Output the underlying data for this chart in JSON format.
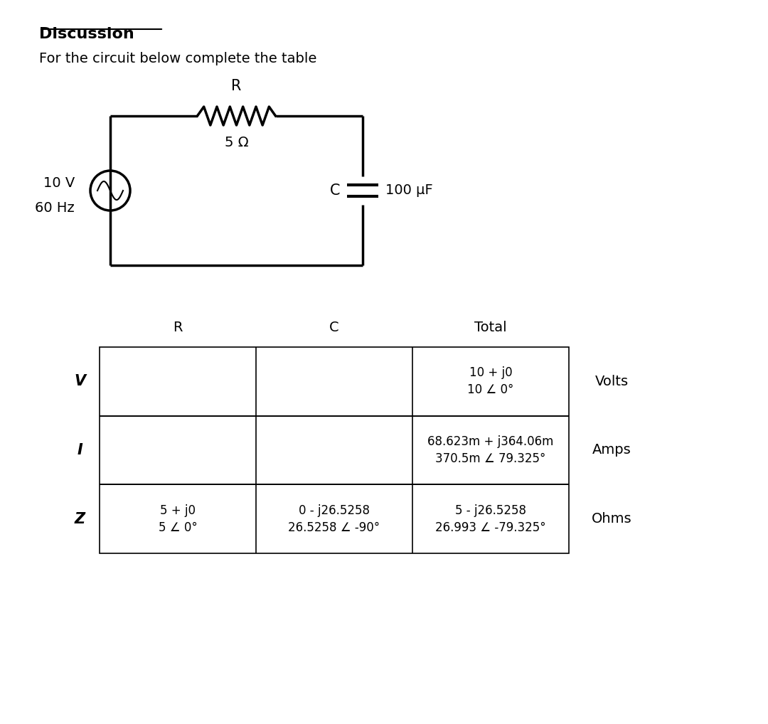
{
  "title": "Discussion",
  "subtitle": "For the circuit below complete the table",
  "bg_color": "#ffffff",
  "font_family": "DejaVu Sans",
  "circuit": {
    "source_label_top": "10 V",
    "source_label_bot": "60 Hz",
    "resistor_label_top": "R",
    "resistor_label_bot": "5 Ω",
    "capacitor_label_left": "C",
    "capacitor_label_right": "100 μF"
  },
  "table": {
    "col_headers": [
      "R",
      "C",
      "Total"
    ],
    "row_headers": [
      "V",
      "I",
      "Z"
    ],
    "row_units": [
      "Volts",
      "Amps",
      "Ohms"
    ],
    "cells": [
      [
        "",
        "",
        "10 + j0\n10 ∠ 0°"
      ],
      [
        "",
        "",
        "68.623m + j364.06m\n370.5m ∠ 79.325°"
      ],
      [
        "5 + j0\n5 ∠ 0°",
        "0 - j26.5258\n26.5258 ∠ -90°",
        "5 - j26.5258\n26.993 ∠ -79.325°"
      ]
    ]
  }
}
